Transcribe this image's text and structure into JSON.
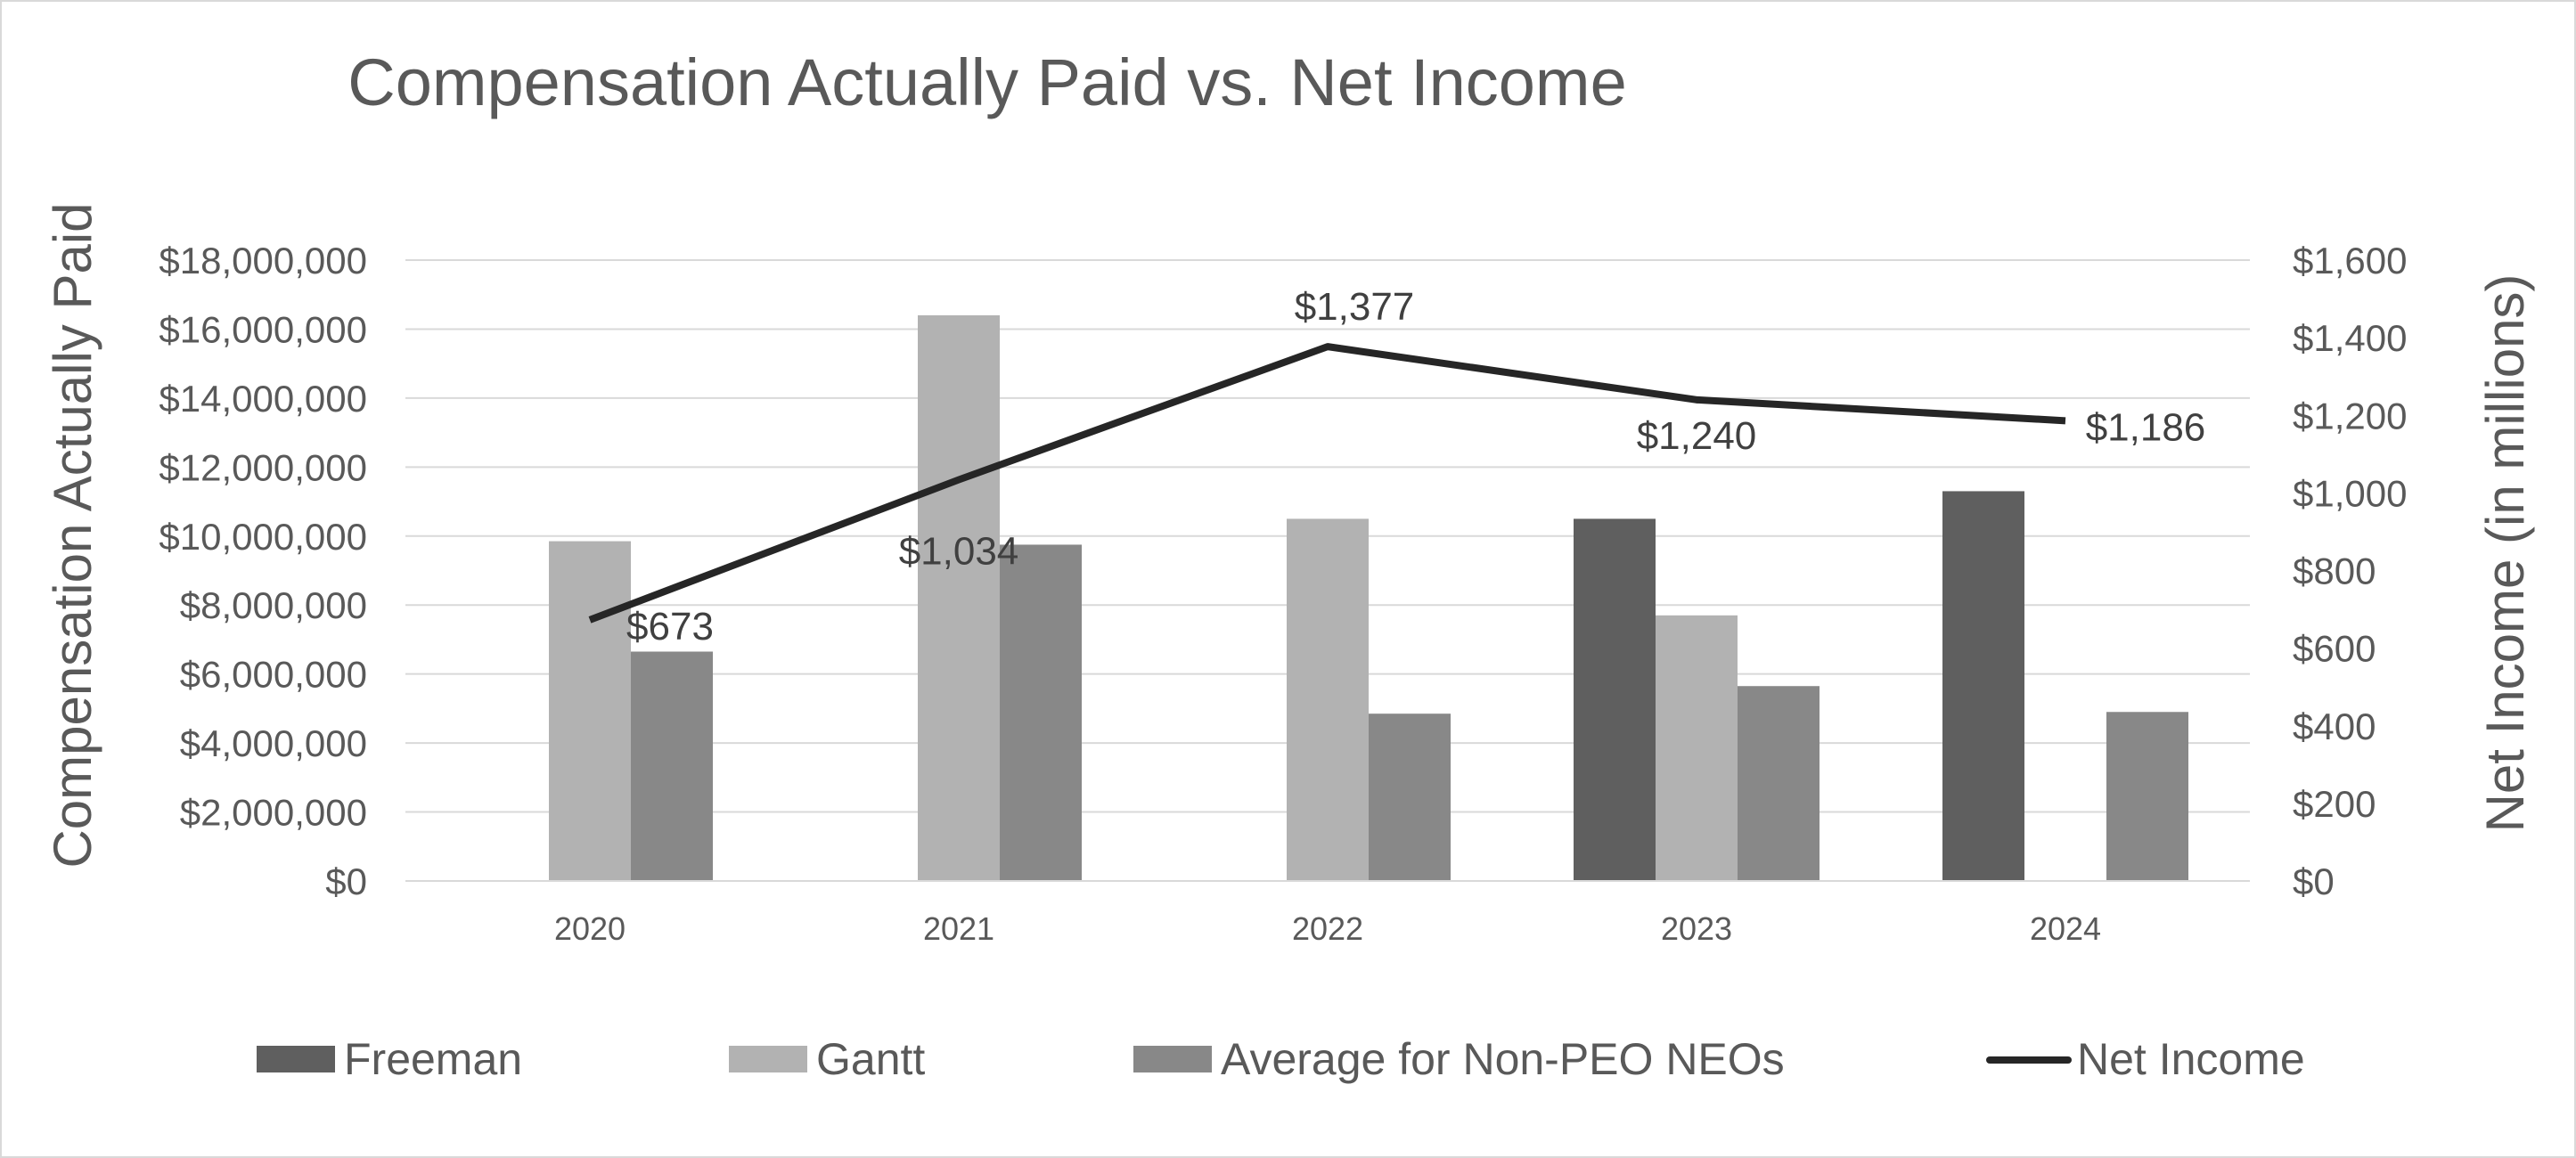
{
  "chart_data": {
    "type": "bar",
    "title": "Compensation Actually Paid vs. Net Income",
    "ylabel": "Compensation Actually Paid",
    "y2label": "Net Income (in millions)",
    "categories": [
      "2020",
      "2021",
      "2022",
      "2023",
      "2024"
    ],
    "ylim": [
      0,
      18000000
    ],
    "y_ticks": [
      "$0",
      "$2,000,000",
      "$4,000,000",
      "$6,000,000",
      "$8,000,000",
      "$10,000,000",
      "$12,000,000",
      "$14,000,000",
      "$16,000,000",
      "$18,000,000"
    ],
    "y2lim": [
      0,
      1600
    ],
    "y2_ticks": [
      "$0",
      "$200",
      "$400",
      "$600",
      "$800",
      "$1,000",
      "$1,200",
      "$1,400",
      "$1,600"
    ],
    "grid": true,
    "legend_position": "bottom",
    "series": [
      {
        "name": "Freeman",
        "type": "bar",
        "axis": "left",
        "color": "#5f5f5f",
        "values": [
          null,
          null,
          null,
          10500000,
          11300000
        ]
      },
      {
        "name": "Gantt",
        "type": "bar",
        "axis": "left",
        "color": "#b2b2b2",
        "values": [
          9850000,
          16400000,
          10500000,
          7700000,
          null
        ]
      },
      {
        "name": "Average for Non-PEO NEOs",
        "type": "bar",
        "axis": "left",
        "color": "#888888",
        "values": [
          6650000,
          9750000,
          4850000,
          5650000,
          4900000
        ]
      },
      {
        "name": "Net Income",
        "type": "line",
        "axis": "right",
        "color": "#262626",
        "values": [
          673,
          1034,
          1377,
          1240,
          1186
        ],
        "labels": [
          "$673",
          "$1,034",
          "$1,377",
          "$1,240",
          "$1,186"
        ]
      }
    ]
  }
}
